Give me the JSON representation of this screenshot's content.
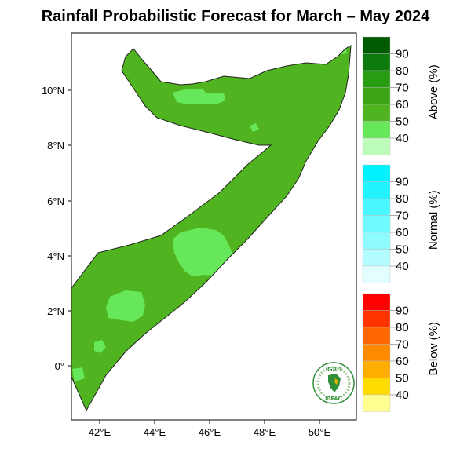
{
  "title": "Rainfall Probabilistic Forecast for March – May 2024",
  "map": {
    "lat_ticks": [
      "10°N",
      "8°N",
      "6°N",
      "4°N",
      "2°N",
      "0°"
    ],
    "lon_ticks": [
      "42°E",
      "44°E",
      "46°E",
      "48°E",
      "50°E"
    ],
    "dominant_category": "Above",
    "dominant_probability": "50-60",
    "colors": {
      "above_50_60": "#4fb41f",
      "above_40_50": "#66e85a",
      "ocean": "#ffffff",
      "coast": "#222222"
    }
  },
  "legend": {
    "above": {
      "label": "Above (%)",
      "ticks": [
        "90",
        "80",
        "70",
        "60",
        "50",
        "40"
      ],
      "colors": [
        "#005a00",
        "#0d7a0d",
        "#279d11",
        "#3da515",
        "#4fb41f",
        "#66e85a",
        "#bdfcb9"
      ]
    },
    "normal": {
      "label": "Normal (%)",
      "ticks": [
        "90",
        "80",
        "70",
        "60",
        "50",
        "40"
      ],
      "colors": [
        "#00f2ff",
        "#22f4ff",
        "#48f7ff",
        "#6efaff",
        "#8efcff",
        "#b3fdff",
        "#e2feff"
      ]
    },
    "below": {
      "label": "Below (%)",
      "ticks": [
        "90",
        "80",
        "70",
        "60",
        "50",
        "40"
      ],
      "colors": [
        "#ff0000",
        "#ff3300",
        "#ff6600",
        "#ff8a00",
        "#ffad00",
        "#ffdc00",
        "#ffff90"
      ]
    }
  },
  "logo": {
    "top_text": "IGAD",
    "bottom_text": "ICPAC"
  }
}
